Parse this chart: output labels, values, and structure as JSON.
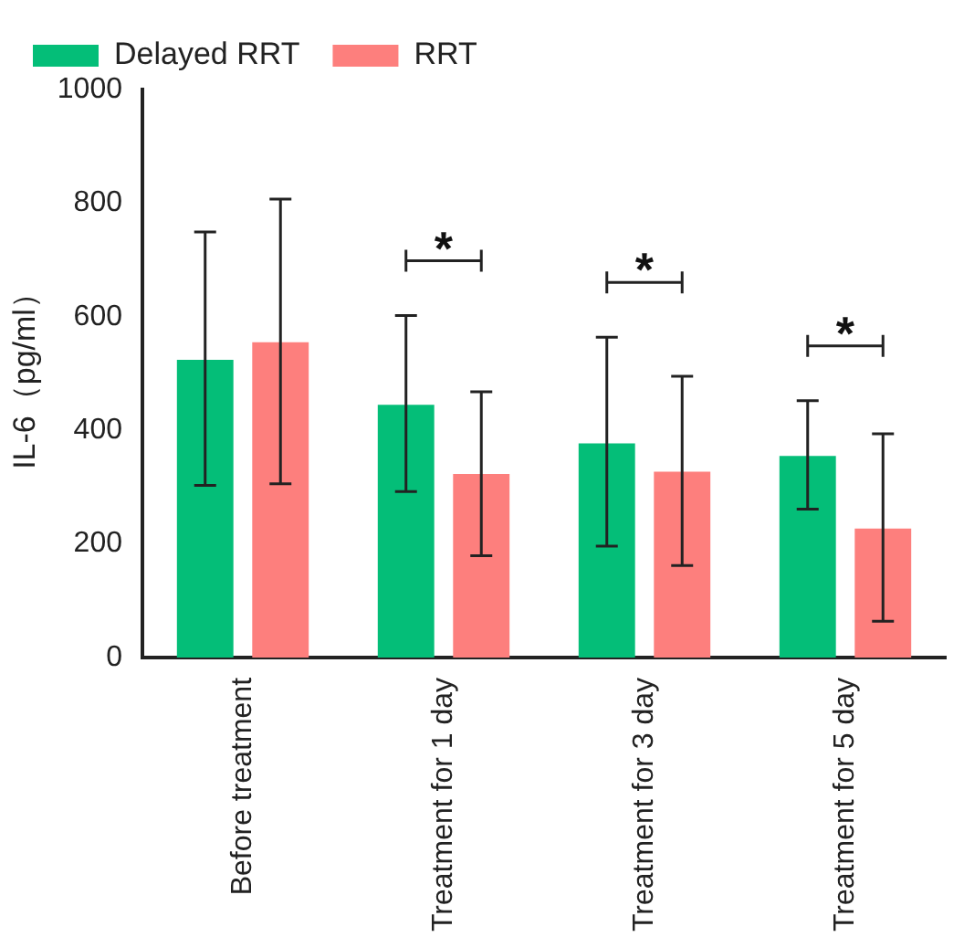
{
  "chart_data": {
    "type": "bar",
    "ylabel": "IL-6（pg/ml）",
    "categories": [
      "Before treatment",
      "Treatment for 1 day",
      "Treatment for 3 day",
      "Treatment for 5 day"
    ],
    "series": [
      {
        "name": "Delayed RRT",
        "color": "#04be78",
        "values": [
          524,
          445,
          377,
          355
        ],
        "errors": [
          [
            303,
            749
          ],
          [
            292,
            602
          ],
          [
            196,
            564
          ],
          [
            261,
            452
          ]
        ]
      },
      {
        "name": "RRT",
        "color": "#fd7f7d",
        "values": [
          555,
          323,
          327,
          227
        ],
        "errors": [
          [
            306,
            807
          ],
          [
            179,
            468
          ],
          [
            162,
            495
          ],
          [
            64,
            394
          ]
        ]
      }
    ],
    "ylim": [
      0,
      1000
    ],
    "yticks": [
      0,
      200,
      400,
      600,
      800,
      1000
    ],
    "grid": false,
    "legend": "top",
    "annotations": [
      "*",
      "*",
      "*"
    ]
  }
}
